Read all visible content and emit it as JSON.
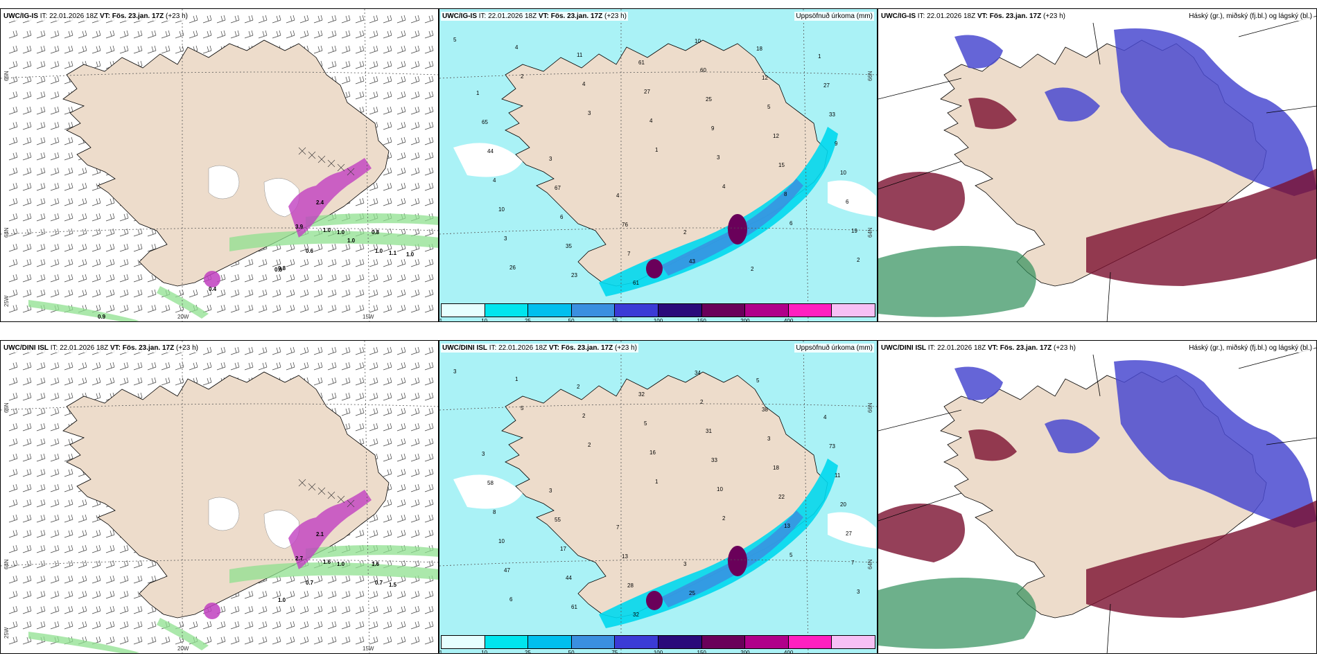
{
  "panels": [
    {
      "id": "r1c1",
      "model": "UWC/IG-IS",
      "it_label": "IT:",
      "it": "22.01.2026 18Z",
      "vt_label": "VT:",
      "vt": "Fös. 23.jan. 17Z",
      "lead": "(+23 h)",
      "right": "",
      "kind": "wind",
      "lat_labels": [
        "66N",
        "64N",
        "25W"
      ],
      "lon_labels": [
        "20W",
        "15W"
      ],
      "values": [
        "3.9",
        "2.4",
        "1.0",
        "1.0",
        "0.8",
        "0.6",
        "0.8",
        "1.0",
        "1.1",
        "1.0",
        "1.0",
        "0.8",
        "0.9",
        "0.4"
      ]
    },
    {
      "id": "r1c2",
      "model": "UWC/IG-IS",
      "it_label": "IT:",
      "it": "22.01.2026 18Z",
      "vt_label": "VT:",
      "vt": "Fös. 23.jan. 17Z",
      "lead": "(+23 h)",
      "right": "Uppsöfnuð úrkoma (mm)",
      "kind": "precip",
      "lat_labels": [
        "66N",
        "64N"
      ],
      "values": [
        "5",
        "2",
        "3",
        "1",
        "4",
        "6",
        "2",
        "4",
        "4",
        "4",
        "3",
        "8",
        "19",
        "26",
        "11",
        "27",
        "9",
        "15",
        "6",
        "3",
        "23",
        "61",
        "25",
        "12",
        "10",
        "10",
        "35",
        "61",
        "60",
        "5",
        "9",
        "4",
        "6",
        "7",
        "10",
        "12",
        "33",
        "44",
        "67",
        "76",
        "43",
        "18",
        "27",
        "65",
        "3",
        "4",
        "2",
        "2",
        "1",
        "1"
      ]
    },
    {
      "id": "r1c3",
      "model": "UWC/IG-IS",
      "it_label": "IT:",
      "it": "22.01.2026 18Z",
      "vt_label": "VT:",
      "vt": "Fös. 23.jan. 17Z",
      "lead": "(+23 h)",
      "right": "Háský (gr.), miðský (fj.bl.) og lágský (bl.)",
      "kind": "cloud"
    },
    {
      "id": "r2c1",
      "model": "UWC/DINI ISL",
      "it_label": "IT:",
      "it": "22.01.2026 18Z",
      "vt_label": "VT:",
      "vt": "Fös. 23.jan. 17Z",
      "lead": "(+23 h)",
      "right": "",
      "kind": "wind",
      "lat_labels": [
        "66N",
        "64N",
        "25W"
      ],
      "lon_labels": [
        "20W",
        "15W"
      ],
      "values": [
        "2.7",
        "2.1",
        "1.6",
        "1.0",
        "1.6",
        "0.7",
        "1.0",
        "0.7",
        "1.5"
      ]
    },
    {
      "id": "r2c2",
      "model": "UWC/DINI ISL",
      "it_label": "IT:",
      "it": "22.01.2026 18Z",
      "vt_label": "VT:",
      "vt": "Fös. 23.jan. 17Z",
      "lead": "(+23 h)",
      "right": "Uppsöfnuð úrkoma (mm)",
      "kind": "precip",
      "lat_labels": [
        "66N",
        "64N"
      ],
      "values": [
        "3",
        "5",
        "2",
        "1",
        "2",
        "5",
        "3",
        "1",
        "2",
        "16",
        "10",
        "13",
        "7",
        "6",
        "2",
        "5",
        "33",
        "22",
        "27",
        "47",
        "61",
        "32",
        "31",
        "18",
        "20",
        "10",
        "44",
        "32",
        "2",
        "3",
        "11",
        "8",
        "17",
        "28",
        "34",
        "38",
        "73",
        "58",
        "55",
        "13",
        "25",
        "5",
        "4",
        "3",
        "3",
        "7",
        "3"
      ]
    },
    {
      "id": "r2c3",
      "model": "UWC/DINI ISL",
      "it_label": "IT:",
      "it": "22.01.2026 18Z",
      "vt_label": "VT:",
      "vt": "Fös. 23.jan. 17Z",
      "lead": "(+23 h)",
      "right": "Háský (gr.), miðský (fj.bl.) og lágský (bl.)",
      "kind": "cloud"
    }
  ],
  "legend": {
    "ticks": [
      "1",
      "10",
      "25",
      "50",
      "75",
      "100",
      "150",
      "200",
      "400"
    ],
    "colors": [
      "#e6ffff",
      "#00e5ee",
      "#00bfee",
      "#3a8fe0",
      "#3b3bd6",
      "#2a0a7a",
      "#6a005a",
      "#b0008a",
      "#ff20c0",
      "#f7c0f5"
    ]
  },
  "colors": {
    "land": "#eddccb",
    "sea_precip": "#aaf2f6",
    "wind_green": "#8fe08f",
    "cloud_high": "#2f8e5a",
    "cloud_mid": "#4a4ad0",
    "cloud_low": "#7a1030"
  }
}
